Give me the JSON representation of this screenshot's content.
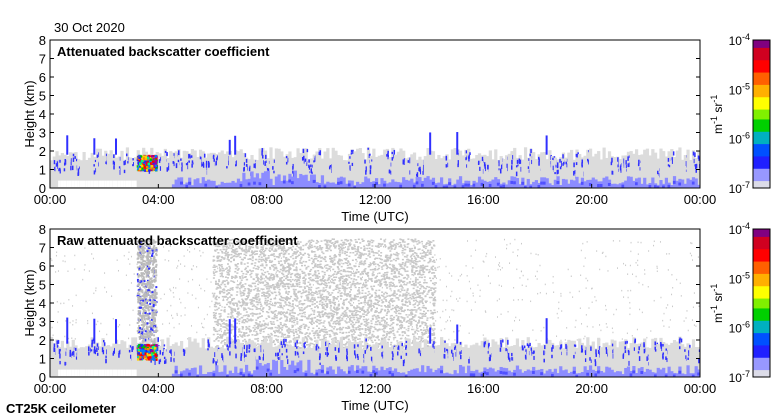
{
  "date_label": "30 Oct 2020",
  "instrument_label": "CT25K ceilometer",
  "chart_data": [
    {
      "type": "heatmap",
      "title": "Attenuated backscatter coefficient",
      "xlabel": "Time (UTC)",
      "ylabel": "Height (km)",
      "xlim": [
        0,
        24
      ],
      "ylim": [
        0,
        8
      ],
      "xticks": [
        "00:00",
        "04:00",
        "08:00",
        "12:00",
        "16:00",
        "20:00",
        "00:00"
      ],
      "yticks": [
        "0",
        "1",
        "2",
        "3",
        "4",
        "5",
        "6",
        "7",
        "8"
      ],
      "colorbar": {
        "label_base": "m",
        "label_exp1": "-1",
        "label_mid": " sr",
        "label_exp2": "-1",
        "ticks": [
          {
            "base": "10",
            "exp": "-4"
          },
          {
            "base": "10",
            "exp": "-5"
          },
          {
            "base": "10",
            "exp": "-6"
          },
          {
            "base": "10",
            "exp": "-7"
          }
        ],
        "range": [
          1e-07,
          0.0001
        ],
        "scale": "log"
      },
      "features": {
        "boundary_layer_top_km": [
          1.5,
          2.2
        ],
        "cloud": {
          "time": [
            3.2,
            3.9
          ],
          "height": [
            1.0,
            1.8
          ]
        },
        "spikes_h": [
          0.6,
          1.6,
          2.4,
          6.6,
          6.8,
          14.0,
          15.0,
          18.3
        ],
        "noise": "none"
      }
    },
    {
      "type": "heatmap",
      "title": "Raw attenuated backscatter coefficient",
      "xlabel": "Time (UTC)",
      "ylabel": "Height (km)",
      "xlim": [
        0,
        24
      ],
      "ylim": [
        0,
        8
      ],
      "xticks": [
        "00:00",
        "04:00",
        "08:00",
        "12:00",
        "16:00",
        "20:00",
        "00:00"
      ],
      "yticks": [
        "0",
        "1",
        "2",
        "3",
        "4",
        "5",
        "6",
        "7",
        "8"
      ],
      "colorbar": {
        "label_base": "m",
        "label_exp1": "-1",
        "label_mid": " sr",
        "label_exp2": "-1",
        "ticks": [
          {
            "base": "10",
            "exp": "-4"
          },
          {
            "base": "10",
            "exp": "-5"
          },
          {
            "base": "10",
            "exp": "-6"
          },
          {
            "base": "10",
            "exp": "-7"
          }
        ],
        "range": [
          1e-07,
          0.0001
        ],
        "scale": "log"
      },
      "features": {
        "boundary_layer_top_km": [
          1.5,
          2.2
        ],
        "cloud": {
          "time": [
            3.2,
            3.9
          ],
          "height": [
            1.0,
            1.8
          ]
        },
        "spikes_h": [
          0.6,
          1.6,
          2.4,
          6.6,
          6.8,
          14.0,
          15.0,
          18.3
        ],
        "noise": "high"
      }
    }
  ],
  "colors": {
    "gray": "#dcdcdc",
    "light_blue": "#8c8cff",
    "blue": "#3030ff"
  }
}
